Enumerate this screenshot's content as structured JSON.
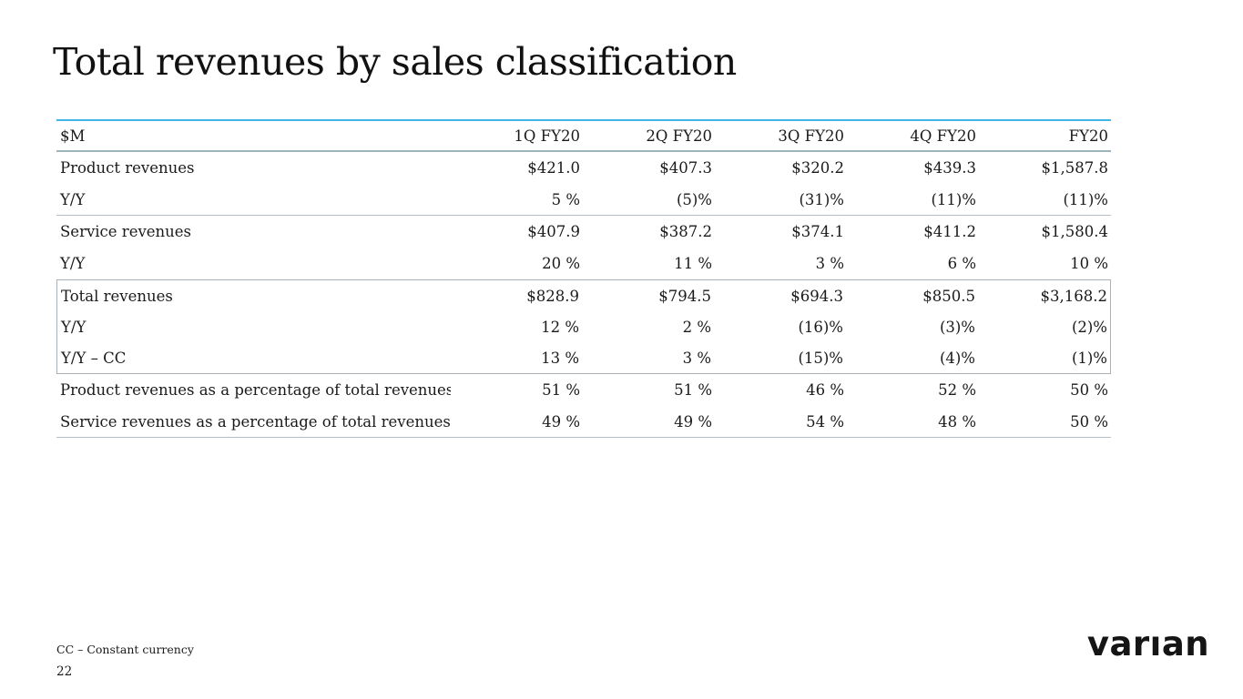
{
  "slide": {
    "title": "Total revenues by sales classification",
    "footnote": "CC – Constant currency",
    "page_number": "22"
  },
  "logo": {
    "text": "varıan"
  },
  "table": {
    "unit_label": "$M",
    "column_headers": [
      "1Q FY20",
      "2Q FY20",
      "3Q FY20",
      "4Q FY20",
      "FY20"
    ],
    "rows": [
      {
        "label": "Product revenues",
        "values": [
          "$421.0",
          "$407.3",
          "$320.2",
          "$439.3",
          "$1,587.8"
        ]
      },
      {
        "label": "Y/Y",
        "values": [
          "5 %",
          "(5)%",
          "(31)%",
          "(11)%",
          "(11)%"
        ]
      },
      {
        "label": "Service revenues",
        "values": [
          "$407.9",
          "$387.2",
          "$374.1",
          "$411.2",
          "$1,580.4"
        ]
      },
      {
        "label": "Y/Y",
        "values": [
          "20 %",
          "11 %",
          "3 %",
          "6 %",
          "10 %"
        ]
      },
      {
        "label": "Total revenues",
        "values": [
          "$828.9",
          "$794.5",
          "$694.3",
          "$850.5",
          "$3,168.2"
        ]
      },
      {
        "label": "Y/Y",
        "values": [
          "12 %",
          "2 %",
          "(16)%",
          "(3)%",
          "(2)%"
        ]
      },
      {
        "label": "Y/Y – CC",
        "values": [
          "13 %",
          "3 %",
          "(15)%",
          "(4)%",
          "(1)%"
        ]
      },
      {
        "label": "Product revenues as a percentage of total revenues",
        "values": [
          "51 %",
          "51 %",
          "46 %",
          "52 %",
          "50 %"
        ]
      },
      {
        "label": "Service revenues as a percentage of total revenues",
        "values": [
          "49 %",
          "49 %",
          "54 %",
          "48 %",
          "50 %"
        ]
      }
    ]
  },
  "colors": {
    "accent_top_border": "#41b6e6",
    "header_rule": "#9fb3bd",
    "row_rule": "#b6bec4",
    "box_border": "#a9b1b7",
    "text": "#1a1a1a"
  }
}
